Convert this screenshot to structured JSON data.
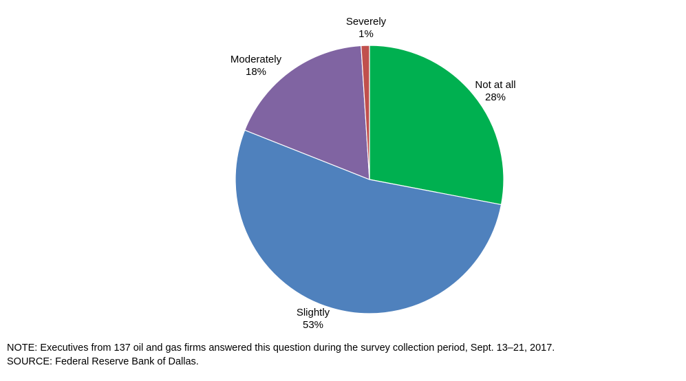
{
  "chart_data": {
    "type": "pie",
    "slices": [
      {
        "label": "Not at all",
        "value": 28,
        "value_label": "28%",
        "color": "#00B050"
      },
      {
        "label": "Slightly",
        "value": 53,
        "value_label": "53%",
        "color": "#4F81BD"
      },
      {
        "label": "Moderately",
        "value": 18,
        "value_label": "18%",
        "color": "#8064A2"
      },
      {
        "label": "Severely",
        "value": 1,
        "value_label": "1%",
        "color": "#C0504D"
      }
    ],
    "title": "",
    "legend": "none",
    "start_angle": "12 o'clock",
    "direction": "clockwise"
  },
  "notes": {
    "note": "NOTE:  Executives  from  137  oil  and  gas  firms  answered  this  question  during  the  survey  collection  period,  Sept.  13–21,  2017.",
    "source": "SOURCE:  Federal  Reserve  Bank  of  Dallas."
  }
}
